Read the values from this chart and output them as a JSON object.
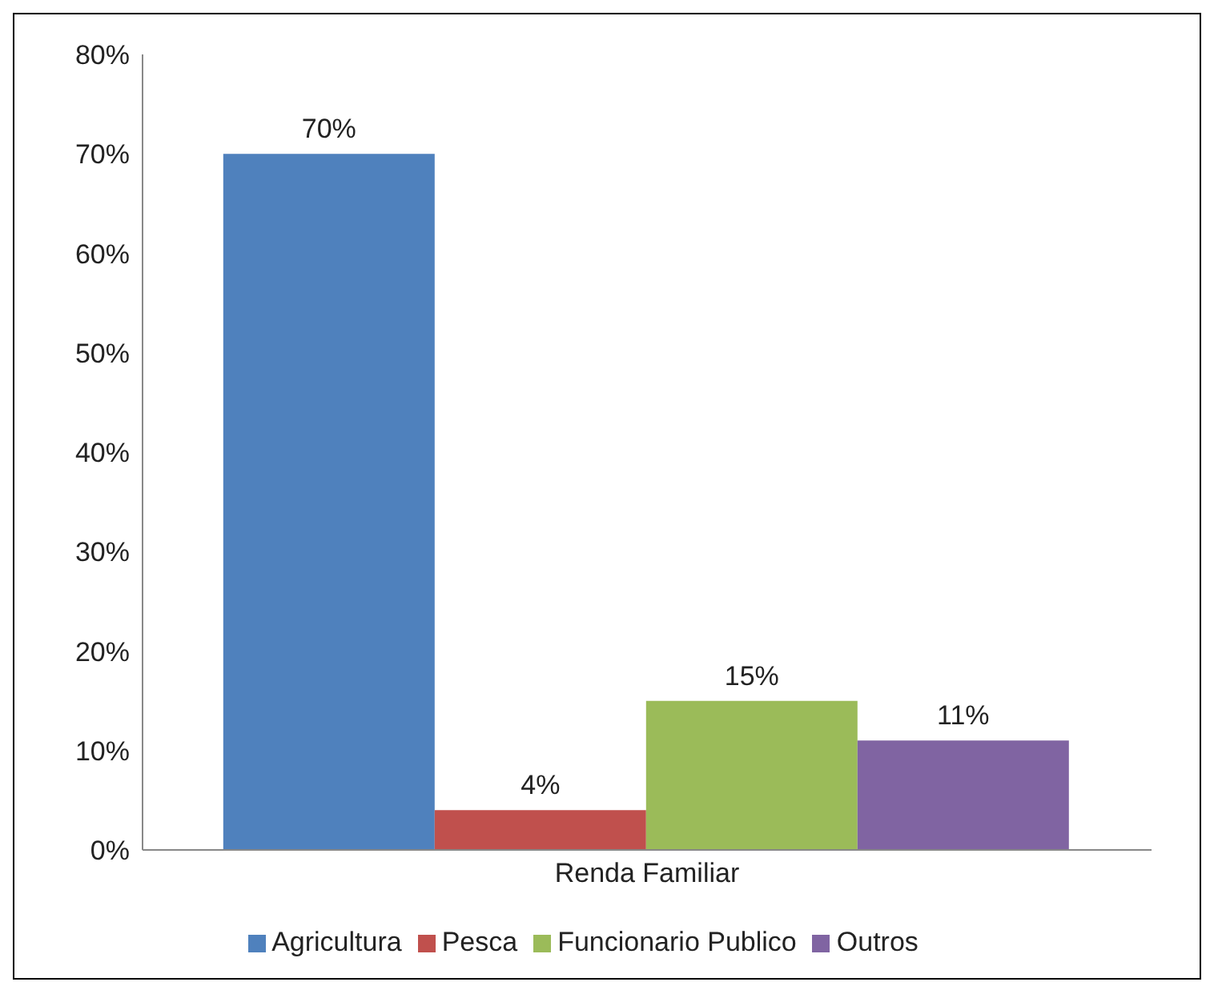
{
  "chart_data": {
    "type": "bar",
    "categories": [
      "Renda Familiar"
    ],
    "series": [
      {
        "name": "Agricultura",
        "color": "#4f81bd",
        "values": [
          70
        ],
        "value_labels": [
          "70%"
        ]
      },
      {
        "name": "Pesca",
        "color": "#c0504d",
        "values": [
          4
        ],
        "value_labels": [
          "4%"
        ]
      },
      {
        "name": "Funcionario Publico",
        "color": "#9bbb59",
        "values": [
          15
        ],
        "value_labels": [
          "15%"
        ]
      },
      {
        "name": "Outros",
        "color": "#8064a2",
        "values": [
          11
        ],
        "value_labels": [
          "11%"
        ]
      }
    ],
    "ylim": [
      0,
      80
    ],
    "yticks": [
      {
        "value": 0,
        "label": "0%"
      },
      {
        "value": 10,
        "label": "10%"
      },
      {
        "value": 20,
        "label": "20%"
      },
      {
        "value": 30,
        "label": "30%"
      },
      {
        "value": 40,
        "label": "40%"
      },
      {
        "value": 50,
        "label": "50%"
      },
      {
        "value": 60,
        "label": "60%"
      },
      {
        "value": 70,
        "label": "70%"
      },
      {
        "value": 80,
        "label": "80%"
      }
    ],
    "grid": false,
    "legend": "bottom"
  }
}
